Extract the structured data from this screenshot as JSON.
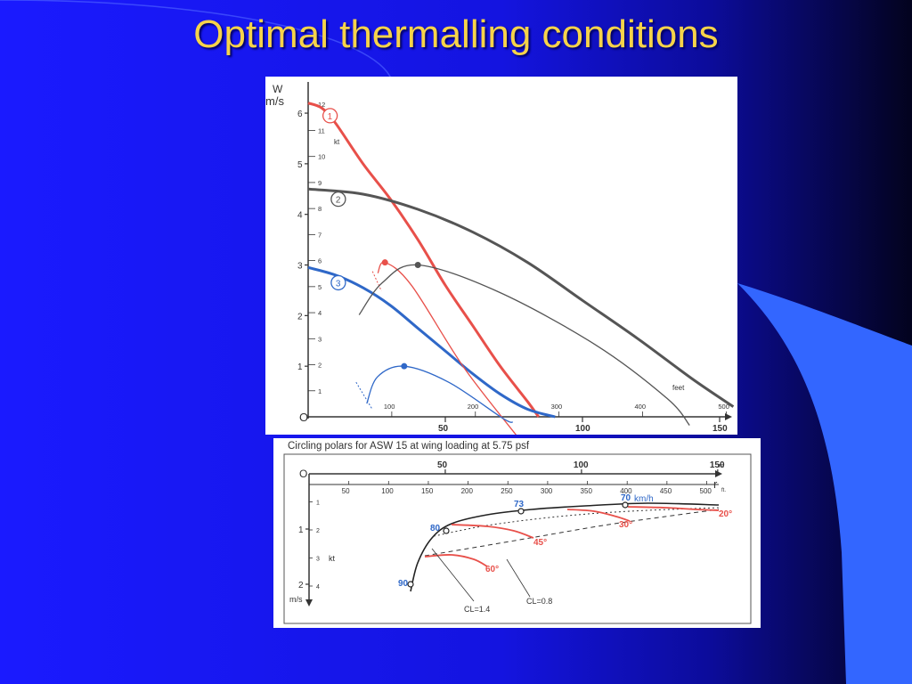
{
  "slide": {
    "title": "Optimal thermalling conditions",
    "colors": {
      "title": "#f6d34a",
      "background": "#1414e0",
      "accent_swoosh": "#3366ff"
    }
  },
  "chart_data": [
    {
      "type": "line",
      "y_axis_left": {
        "label_top": "W",
        "label_unit": "m/s",
        "ticks": [
          "1",
          "2",
          "3",
          "4",
          "5",
          "6"
        ],
        "origin": "O"
      },
      "y_axis_inner": {
        "unit": "kt",
        "ticks": [
          "1",
          "2",
          "3",
          "4",
          "5",
          "6",
          "7",
          "8",
          "9",
          "10",
          "11",
          "12"
        ]
      },
      "x_axis_feet": {
        "unit": "feet",
        "ticks": [
          "100",
          "200",
          "300",
          "400",
          "500"
        ]
      },
      "x_axis_m": {
        "ticks": [
          "50",
          "100",
          "150"
        ]
      },
      "series": [
        {
          "name": "1",
          "color": "#e8504a",
          "points": [
            [
              0,
              6.2
            ],
            [
              5,
              6.1
            ],
            [
              10,
              5.8
            ],
            [
              20,
              5.0
            ],
            [
              30,
              4.3
            ],
            [
              40,
              3.5
            ],
            [
              50,
              2.6
            ],
            [
              60,
              1.8
            ],
            [
              70,
              1.0
            ],
            [
              80,
              0.3
            ],
            [
              84,
              0
            ]
          ]
        },
        {
          "name": "2",
          "color": "#555555",
          "points": [
            [
              0,
              4.5
            ],
            [
              20,
              4.4
            ],
            [
              40,
              4.1
            ],
            [
              60,
              3.65
            ],
            [
              80,
              3.05
            ],
            [
              100,
              2.3
            ],
            [
              120,
              1.55
            ],
            [
              140,
              0.75
            ],
            [
              155,
              0.2
            ]
          ]
        },
        {
          "name": "3",
          "color": "#2f68c8",
          "points": [
            [
              0,
              2.95
            ],
            [
              10,
              2.8
            ],
            [
              20,
              2.55
            ],
            [
              30,
              2.2
            ],
            [
              40,
              1.75
            ],
            [
              50,
              1.3
            ],
            [
              60,
              0.85
            ],
            [
              70,
              0.45
            ],
            [
              80,
              0.15
            ],
            [
              90,
              0
            ]
          ]
        }
      ],
      "circle_labels": [
        "1",
        "2",
        "3"
      ],
      "circling_curves": [
        {
          "color": "#e8504a",
          "apex": [
            28,
            3.05
          ]
        },
        {
          "color": "#555555",
          "apex": [
            40,
            3.0
          ]
        },
        {
          "color": "#2f68c8",
          "apex": [
            35,
            1.0
          ]
        }
      ],
      "xlim": [
        0,
        150
      ],
      "ylim": [
        0,
        6.5
      ]
    },
    {
      "type": "line",
      "title": "Circling polars for ASW 15 at wing loading at 5.75 psf",
      "x_axis_top_m": {
        "ticks": [
          "50",
          "100",
          "150"
        ],
        "unit": "m"
      },
      "x_axis_ft": {
        "ticks": [
          "50",
          "100",
          "150",
          "200",
          "250",
          "300",
          "350",
          "400",
          "450",
          "500"
        ],
        "unit": "ft."
      },
      "y_axis_ms": {
        "ticks": [
          "1",
          "2"
        ],
        "unit": "m/s",
        "origin": "O"
      },
      "y_axis_kt": {
        "ticks": [
          "1",
          "2",
          "3",
          "4"
        ],
        "unit": "kt"
      },
      "x_symbol": "r",
      "speed_labels": [
        "90",
        "80",
        "73",
        "70"
      ],
      "speed_unit": "km/h",
      "bank_labels": [
        "20°",
        "30°",
        "45°",
        "60°"
      ],
      "cl_labels": [
        "CL=1.4",
        "CL=0.8"
      ]
    }
  ]
}
